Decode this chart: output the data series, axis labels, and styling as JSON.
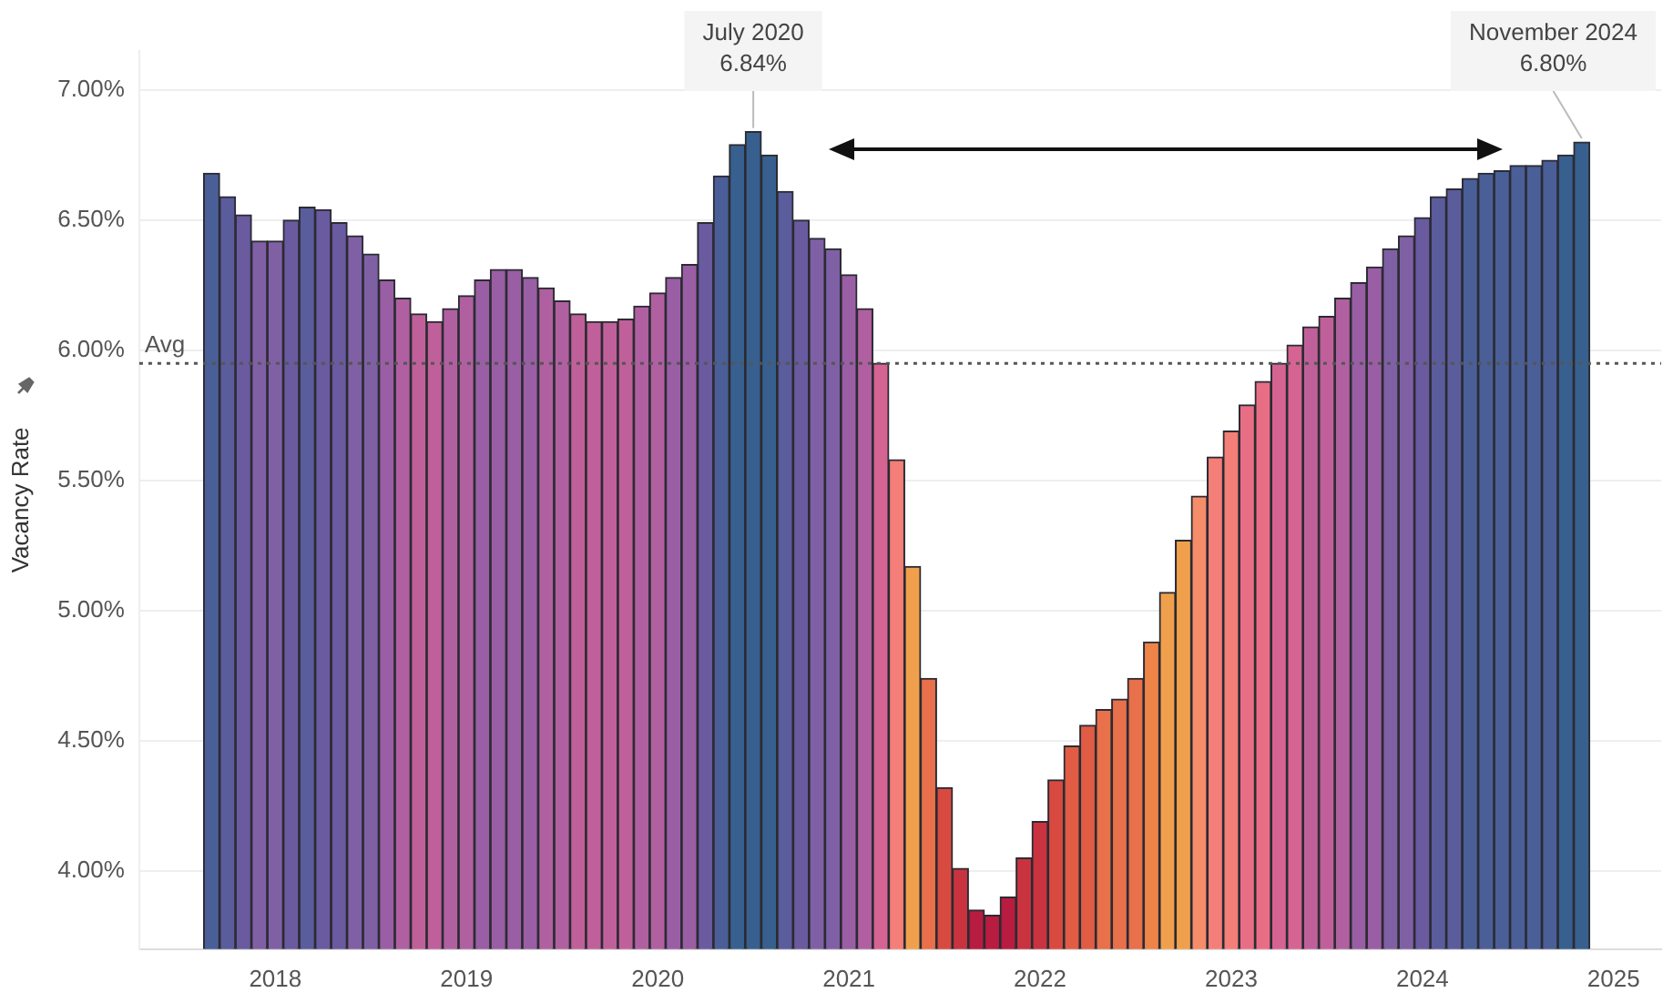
{
  "chart_data": {
    "type": "bar",
    "ylabel": "Vacancy Rate",
    "x": [
      "2017-09",
      "2017-10",
      "2017-11",
      "2017-12",
      "2018-01",
      "2018-02",
      "2018-03",
      "2018-04",
      "2018-05",
      "2018-06",
      "2018-07",
      "2018-08",
      "2018-09",
      "2018-10",
      "2018-11",
      "2018-12",
      "2019-01",
      "2019-02",
      "2019-03",
      "2019-04",
      "2019-05",
      "2019-06",
      "2019-07",
      "2019-08",
      "2019-09",
      "2019-10",
      "2019-11",
      "2019-12",
      "2020-01",
      "2020-02",
      "2020-03",
      "2020-04",
      "2020-05",
      "2020-06",
      "2020-07",
      "2020-08",
      "2020-09",
      "2020-10",
      "2020-11",
      "2020-12",
      "2021-01",
      "2021-02",
      "2021-03",
      "2021-04",
      "2021-05",
      "2021-06",
      "2021-07",
      "2021-08",
      "2021-09",
      "2021-10",
      "2021-11",
      "2021-12",
      "2022-01",
      "2022-02",
      "2022-03",
      "2022-04",
      "2022-05",
      "2022-06",
      "2022-07",
      "2022-08",
      "2022-09",
      "2022-10",
      "2022-11",
      "2022-12",
      "2023-01",
      "2023-02",
      "2023-03",
      "2023-04",
      "2023-05",
      "2023-06",
      "2023-07",
      "2023-08",
      "2023-09",
      "2023-10",
      "2023-11",
      "2023-12",
      "2024-01",
      "2024-02",
      "2024-03",
      "2024-04",
      "2024-05",
      "2024-06",
      "2024-07",
      "2024-08",
      "2024-09",
      "2024-10",
      "2024-11"
    ],
    "values": [
      6.68,
      6.59,
      6.52,
      6.42,
      6.42,
      6.5,
      6.55,
      6.54,
      6.49,
      6.44,
      6.37,
      6.27,
      6.2,
      6.14,
      6.11,
      6.16,
      6.21,
      6.27,
      6.31,
      6.31,
      6.28,
      6.24,
      6.19,
      6.14,
      6.11,
      6.11,
      6.12,
      6.17,
      6.22,
      6.28,
      6.33,
      6.49,
      6.67,
      6.79,
      6.84,
      6.75,
      6.61,
      6.5,
      6.43,
      6.39,
      6.29,
      6.16,
      5.95,
      5.58,
      5.17,
      4.74,
      4.32,
      4.01,
      3.85,
      3.83,
      3.9,
      4.05,
      4.19,
      4.35,
      4.48,
      4.56,
      4.62,
      4.66,
      4.74,
      4.88,
      5.07,
      5.27,
      5.44,
      5.59,
      5.69,
      5.79,
      5.88,
      5.95,
      6.02,
      6.09,
      6.13,
      6.2,
      6.26,
      6.32,
      6.39,
      6.44,
      6.51,
      6.59,
      6.62,
      6.66,
      6.68,
      6.69,
      6.71,
      6.71,
      6.73,
      6.75,
      6.8
    ],
    "colors": [
      "#4a5f98",
      "#5a5c9c",
      "#6a5aa0",
      "#8060a4",
      "#8060a4",
      "#6a5aa0",
      "#5a5c9c",
      "#6a5aa0",
      "#6a5aa0",
      "#8060a4",
      "#8060a4",
      "#9a5ea4",
      "#b060a0",
      "#c0609a",
      "#c0609a",
      "#b060a0",
      "#b060a0",
      "#9a5ea4",
      "#9a5ea4",
      "#9a5ea4",
      "#9a5ea4",
      "#b060a0",
      "#b060a0",
      "#c0609a",
      "#c0609a",
      "#c0609a",
      "#c0609a",
      "#b060a0",
      "#b060a0",
      "#9a5ea4",
      "#9a5ea4",
      "#6a5aa0",
      "#4a5f98",
      "#37608f",
      "#37608f",
      "#37608f",
      "#5a5c9c",
      "#6a5aa0",
      "#8060a4",
      "#8060a4",
      "#9a5ea4",
      "#b060a0",
      "#d56492",
      "#f47e78",
      "#f0a04c",
      "#e8704a",
      "#d84a40",
      "#c93340",
      "#b81c40",
      "#b81c40",
      "#b81c40",
      "#c93340",
      "#c93340",
      "#d84a40",
      "#e05c44",
      "#e05c44",
      "#e8704a",
      "#e8704a",
      "#e8704a",
      "#ee8448",
      "#f0a04c",
      "#f0a04c",
      "#f58c6a",
      "#f47e78",
      "#f47e78",
      "#e86e85",
      "#e86e85",
      "#d56492",
      "#d56492",
      "#c0609a",
      "#c0609a",
      "#b060a0",
      "#9a5ea4",
      "#9a5ea4",
      "#8060a4",
      "#8060a4",
      "#6a5aa0",
      "#5a5c9c",
      "#5a5c9c",
      "#4a5f98",
      "#4a5f98",
      "#4a5f98",
      "#4a5f98",
      "#4a5f98",
      "#4a5f98",
      "#37608f",
      "#37608f"
    ],
    "xlim": [
      "2017-04-15",
      "2025-03-31"
    ],
    "xticks": [
      "2018",
      "2019",
      "2020",
      "2021",
      "2022",
      "2023",
      "2024",
      "2025"
    ],
    "ylim": [
      3.7,
      7.15
    ],
    "yticks": [
      {
        "value": 4,
        "label": "4.00%"
      },
      {
        "value": 4.5,
        "label": "4.50%"
      },
      {
        "value": 5,
        "label": "5.00%"
      },
      {
        "value": 5.5,
        "label": "5.50%"
      },
      {
        "value": 6,
        "label": "6.00%"
      },
      {
        "value": 6.5,
        "label": "6.50%"
      },
      {
        "value": 7,
        "label": "7.00%"
      }
    ],
    "ref_lines": [
      {
        "axis": "y",
        "value": 5.95,
        "label": "Avg",
        "line_style": "dotted",
        "color": "#555555"
      }
    ],
    "annotations": [
      {
        "text": "July 2020\n6.84%",
        "x": "2020-07",
        "y": 6.84
      },
      {
        "text": "November 2024\n6.80%",
        "x": "2024-11",
        "y": 6.8
      }
    ],
    "grid": "y",
    "legend": false
  }
}
